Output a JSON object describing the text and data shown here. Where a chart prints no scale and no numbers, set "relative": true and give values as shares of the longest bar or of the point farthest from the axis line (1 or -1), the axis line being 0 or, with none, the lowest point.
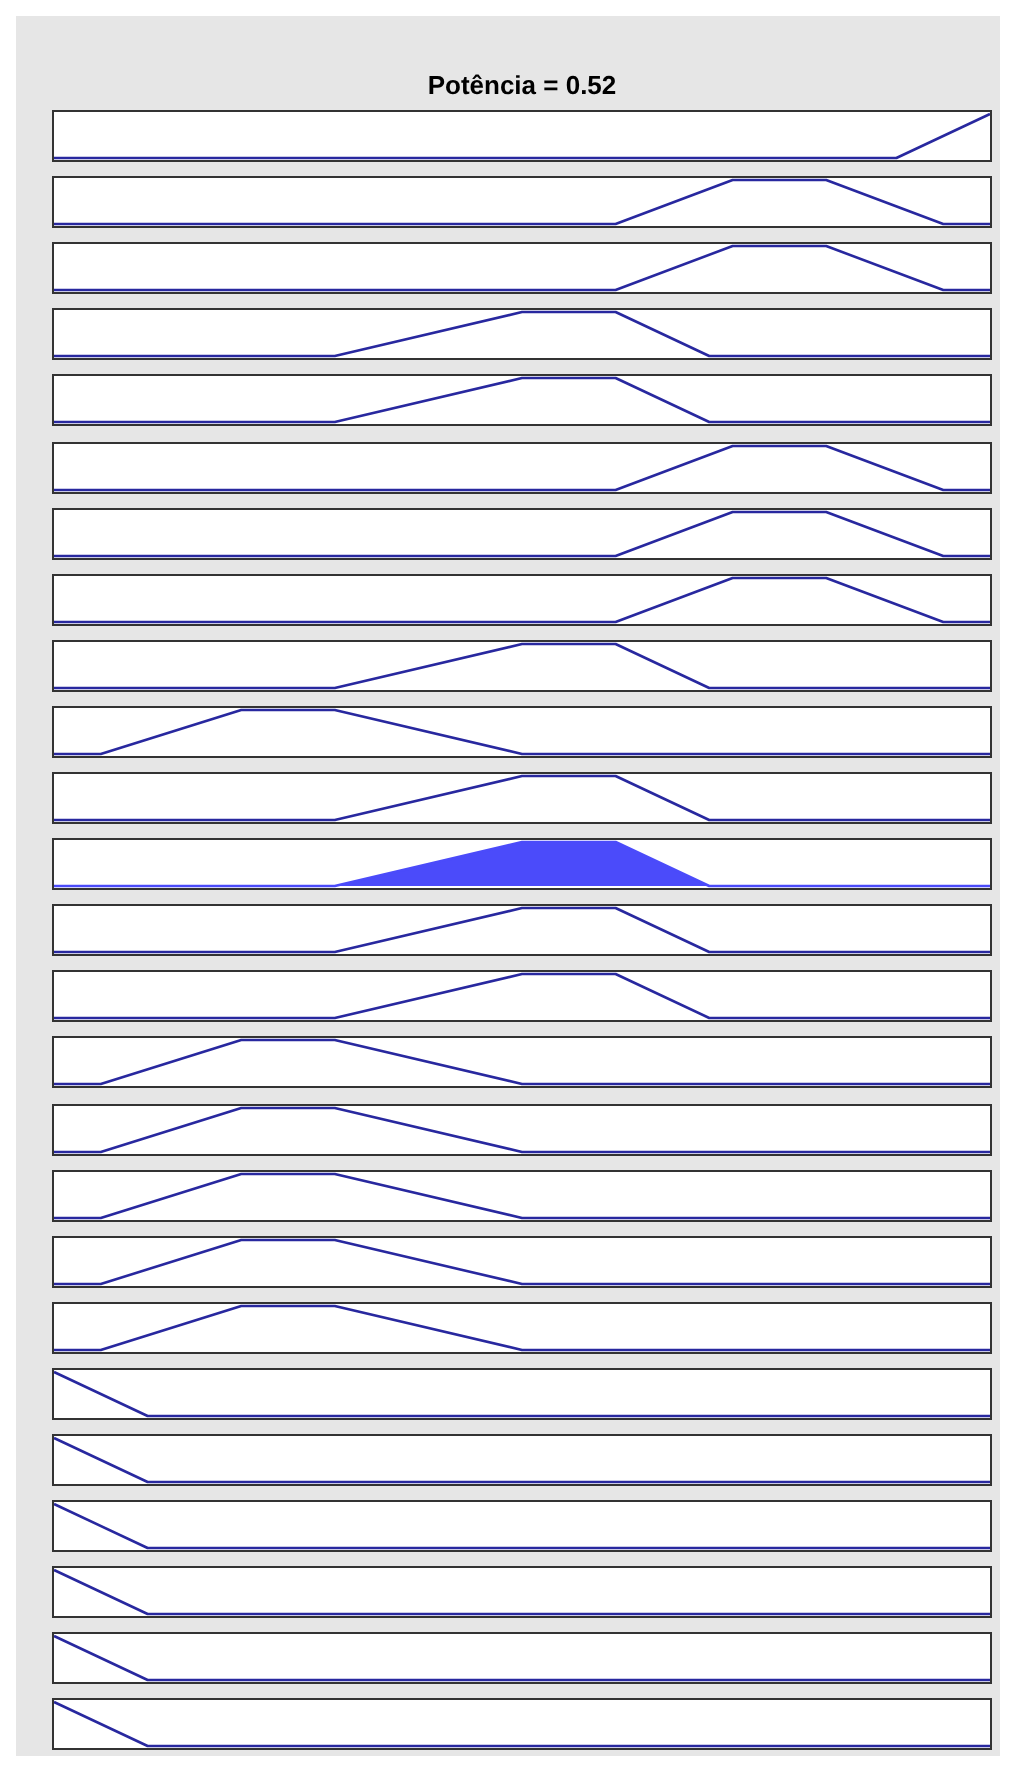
{
  "chart_data": [
    {
      "type": "line",
      "title": "Potência = 0.52",
      "relative": true,
      "categories": [
        null,
        null,
        null,
        null,
        null,
        null,
        null,
        null,
        null,
        null,
        null,
        null,
        null,
        null,
        null,
        null,
        null,
        null,
        null,
        null,
        null,
        null,
        null,
        null,
        null,
        null,
        null,
        null,
        null,
        null,
        null,
        null,
        null,
        null,
        null,
        null,
        null,
        null,
        null,
        null,
        null
      ],
      "series": [
        {
          "color": "#28289f",
          "values": [
            0,
            null,
            null,
            null,
            null,
            null,
            null,
            null,
            null,
            null,
            null,
            null,
            null,
            null,
            null,
            null,
            null,
            null,
            null,
            null,
            null,
            null,
            null,
            null,
            null,
            null,
            null,
            null,
            null,
            null,
            null,
            null,
            null,
            null,
            null,
            null,
            0,
            null,
            null,
            null,
            1
          ]
        }
      ]
    },
    {
      "type": "line",
      "relative": true,
      "categories": [
        null,
        null,
        null,
        null,
        null,
        null,
        null,
        null,
        null,
        null,
        null,
        null,
        null,
        null,
        null,
        null,
        null,
        null,
        null,
        null,
        null,
        null,
        null,
        null,
        null,
        null,
        null,
        null,
        null,
        null,
        null,
        null,
        null,
        null,
        null,
        null,
        null,
        null,
        null,
        null,
        null
      ],
      "series": [
        {
          "color": "#28289f",
          "values": [
            0,
            null,
            null,
            null,
            null,
            null,
            null,
            null,
            null,
            null,
            null,
            null,
            null,
            null,
            null,
            null,
            null,
            null,
            null,
            null,
            null,
            null,
            null,
            null,
            0,
            null,
            null,
            null,
            null,
            1,
            null,
            null,
            null,
            1,
            null,
            null,
            null,
            null,
            0,
            null,
            0
          ]
        }
      ]
    },
    {
      "type": "line",
      "relative": true,
      "categories": [
        null,
        null,
        null,
        null,
        null,
        null,
        null,
        null,
        null,
        null,
        null,
        null,
        null,
        null,
        null,
        null,
        null,
        null,
        null,
        null,
        null,
        null,
        null,
        null,
        null,
        null,
        null,
        null,
        null,
        null,
        null,
        null,
        null,
        null,
        null,
        null,
        null,
        null,
        null,
        null,
        null
      ],
      "series": [
        {
          "color": "#28289f",
          "values": [
            0,
            null,
            null,
            null,
            null,
            null,
            null,
            null,
            null,
            null,
            null,
            null,
            null,
            null,
            null,
            null,
            null,
            null,
            null,
            null,
            null,
            null,
            null,
            null,
            0,
            null,
            null,
            null,
            null,
            1,
            null,
            null,
            null,
            1,
            null,
            null,
            null,
            null,
            0,
            null,
            0
          ]
        }
      ]
    },
    {
      "type": "line",
      "relative": true,
      "categories": [
        null,
        null,
        null,
        null,
        null,
        null,
        null,
        null,
        null,
        null,
        null,
        null,
        null,
        null,
        null,
        null,
        null,
        null,
        null,
        null,
        null,
        null,
        null,
        null,
        null,
        null,
        null,
        null,
        null,
        null,
        null,
        null,
        null,
        null,
        null,
        null,
        null,
        null,
        null,
        null,
        null
      ],
      "series": [
        {
          "color": "#28289f",
          "values": [
            0,
            null,
            null,
            null,
            null,
            null,
            null,
            null,
            null,
            null,
            null,
            null,
            0,
            null,
            null,
            null,
            null,
            null,
            null,
            null,
            1,
            null,
            null,
            null,
            1,
            null,
            null,
            null,
            0,
            null,
            null,
            null,
            null,
            null,
            null,
            null,
            null,
            null,
            null,
            null,
            0
          ]
        }
      ]
    },
    {
      "type": "line",
      "relative": true,
      "categories": [
        null,
        null,
        null,
        null,
        null,
        null,
        null,
        null,
        null,
        null,
        null,
        null,
        null,
        null,
        null,
        null,
        null,
        null,
        null,
        null,
        null,
        null,
        null,
        null,
        null,
        null,
        null,
        null,
        null,
        null,
        null,
        null,
        null,
        null,
        null,
        null,
        null,
        null,
        null,
        null,
        null
      ],
      "series": [
        {
          "color": "#28289f",
          "values": [
            0,
            null,
            null,
            null,
            null,
            null,
            null,
            null,
            null,
            null,
            null,
            null,
            0,
            null,
            null,
            null,
            null,
            null,
            null,
            null,
            1,
            null,
            null,
            null,
            1,
            null,
            null,
            null,
            0,
            null,
            null,
            null,
            null,
            null,
            null,
            null,
            null,
            null,
            null,
            null,
            0
          ]
        }
      ]
    },
    {
      "type": "line",
      "relative": true,
      "categories": [
        null,
        null,
        null,
        null,
        null,
        null,
        null,
        null,
        null,
        null,
        null,
        null,
        null,
        null,
        null,
        null,
        null,
        null,
        null,
        null,
        null,
        null,
        null,
        null,
        null,
        null,
        null,
        null,
        null,
        null,
        null,
        null,
        null,
        null,
        null,
        null,
        null,
        null,
        null,
        null,
        null
      ],
      "series": [
        {
          "color": "#28289f",
          "values": [
            0,
            null,
            null,
            null,
            null,
            null,
            null,
            null,
            null,
            null,
            null,
            null,
            null,
            null,
            null,
            null,
            null,
            null,
            null,
            null,
            null,
            null,
            null,
            null,
            0,
            null,
            null,
            null,
            null,
            1,
            null,
            null,
            null,
            1,
            null,
            null,
            null,
            null,
            0,
            null,
            0
          ]
        }
      ]
    },
    {
      "type": "line",
      "relative": true,
      "categories": [
        null,
        null,
        null,
        null,
        null,
        null,
        null,
        null,
        null,
        null,
        null,
        null,
        null,
        null,
        null,
        null,
        null,
        null,
        null,
        null,
        null,
        null,
        null,
        null,
        null,
        null,
        null,
        null,
        null,
        null,
        null,
        null,
        null,
        null,
        null,
        null,
        null,
        null,
        null,
        null,
        null
      ],
      "series": [
        {
          "color": "#28289f",
          "values": [
            0,
            null,
            null,
            null,
            null,
            null,
            null,
            null,
            null,
            null,
            null,
            null,
            null,
            null,
            null,
            null,
            null,
            null,
            null,
            null,
            null,
            null,
            null,
            null,
            0,
            null,
            null,
            null,
            null,
            1,
            null,
            null,
            null,
            1,
            null,
            null,
            null,
            null,
            0,
            null,
            0
          ]
        }
      ]
    },
    {
      "type": "line",
      "relative": true,
      "categories": [
        null,
        null,
        null,
        null,
        null,
        null,
        null,
        null,
        null,
        null,
        null,
        null,
        null,
        null,
        null,
        null,
        null,
        null,
        null,
        null,
        null,
        null,
        null,
        null,
        null,
        null,
        null,
        null,
        null,
        null,
        null,
        null,
        null,
        null,
        null,
        null,
        null,
        null,
        null,
        null,
        null
      ],
      "series": [
        {
          "color": "#28289f",
          "values": [
            0,
            null,
            null,
            null,
            null,
            null,
            null,
            null,
            null,
            null,
            null,
            null,
            null,
            null,
            null,
            null,
            null,
            null,
            null,
            null,
            null,
            null,
            null,
            null,
            0,
            null,
            null,
            null,
            null,
            1,
            null,
            null,
            null,
            1,
            null,
            null,
            null,
            null,
            0,
            null,
            0
          ]
        }
      ]
    },
    {
      "type": "line",
      "relative": true,
      "categories": [
        null,
        null,
        null,
        null,
        null,
        null,
        null,
        null,
        null,
        null,
        null,
        null,
        null,
        null,
        null,
        null,
        null,
        null,
        null,
        null,
        null,
        null,
        null,
        null,
        null,
        null,
        null,
        null,
        null,
        null,
        null,
        null,
        null,
        null,
        null,
        null,
        null,
        null,
        null,
        null,
        null
      ],
      "series": [
        {
          "color": "#28289f",
          "values": [
            0,
            null,
            null,
            null,
            null,
            null,
            null,
            null,
            null,
            null,
            null,
            null,
            0,
            null,
            null,
            null,
            null,
            null,
            null,
            null,
            1,
            null,
            null,
            null,
            1,
            null,
            null,
            null,
            0,
            null,
            null,
            null,
            null,
            null,
            null,
            null,
            null,
            null,
            null,
            null,
            0
          ]
        }
      ]
    },
    {
      "type": "line",
      "relative": true,
      "categories": [
        null,
        null,
        null,
        null,
        null,
        null,
        null,
        null,
        null,
        null,
        null,
        null,
        null,
        null,
        null,
        null,
        null,
        null,
        null,
        null,
        null,
        null,
        null,
        null,
        null,
        null,
        null,
        null,
        null,
        null,
        null,
        null,
        null,
        null,
        null,
        null,
        null,
        null,
        null,
        null,
        null
      ],
      "series": [
        {
          "color": "#28289f",
          "values": [
            0,
            null,
            0,
            null,
            null,
            null,
            null,
            null,
            1,
            null,
            null,
            null,
            1,
            null,
            null,
            null,
            null,
            null,
            null,
            null,
            0,
            null,
            null,
            null,
            null,
            null,
            null,
            null,
            null,
            null,
            null,
            null,
            null,
            null,
            null,
            null,
            null,
            null,
            null,
            null,
            0
          ]
        }
      ]
    },
    {
      "type": "line",
      "relative": true,
      "categories": [
        null,
        null,
        null,
        null,
        null,
        null,
        null,
        null,
        null,
        null,
        null,
        null,
        null,
        null,
        null,
        null,
        null,
        null,
        null,
        null,
        null,
        null,
        null,
        null,
        null,
        null,
        null,
        null,
        null,
        null,
        null,
        null,
        null,
        null,
        null,
        null,
        null,
        null,
        null,
        null,
        null
      ],
      "series": [
        {
          "color": "#28289f",
          "values": [
            0,
            null,
            null,
            null,
            null,
            null,
            null,
            null,
            null,
            null,
            null,
            null,
            0,
            null,
            null,
            null,
            null,
            null,
            null,
            null,
            1,
            null,
            null,
            null,
            1,
            null,
            null,
            null,
            0,
            null,
            null,
            null,
            null,
            null,
            null,
            null,
            null,
            null,
            null,
            null,
            0
          ]
        }
      ]
    },
    {
      "type": "area",
      "relative": true,
      "categories": [
        null,
        null,
        null,
        null,
        null,
        null,
        null,
        null,
        null,
        null,
        null,
        null,
        null,
        null,
        null,
        null,
        null,
        null,
        null,
        null,
        null,
        null,
        null,
        null,
        null,
        null,
        null,
        null,
        null,
        null,
        null,
        null,
        null,
        null,
        null,
        null,
        null,
        null,
        null,
        null,
        null
      ],
      "series": [
        {
          "color": "#4b4bfa",
          "values": [
            0,
            null,
            null,
            null,
            null,
            null,
            null,
            null,
            null,
            null,
            null,
            null,
            0,
            null,
            null,
            null,
            null,
            null,
            null,
            null,
            1,
            null,
            null,
            null,
            1,
            null,
            null,
            null,
            0,
            null,
            null,
            null,
            null,
            null,
            null,
            null,
            null,
            null,
            null,
            null,
            0
          ]
        }
      ]
    },
    {
      "type": "line",
      "relative": true,
      "categories": [
        null,
        null,
        null,
        null,
        null,
        null,
        null,
        null,
        null,
        null,
        null,
        null,
        null,
        null,
        null,
        null,
        null,
        null,
        null,
        null,
        null,
        null,
        null,
        null,
        null,
        null,
        null,
        null,
        null,
        null,
        null,
        null,
        null,
        null,
        null,
        null,
        null,
        null,
        null,
        null,
        null
      ],
      "series": [
        {
          "color": "#28289f",
          "values": [
            0,
            null,
            null,
            null,
            null,
            null,
            null,
            null,
            null,
            null,
            null,
            null,
            0,
            null,
            null,
            null,
            null,
            null,
            null,
            null,
            1,
            null,
            null,
            null,
            1,
            null,
            null,
            null,
            0,
            null,
            null,
            null,
            null,
            null,
            null,
            null,
            null,
            null,
            null,
            null,
            0
          ]
        }
      ]
    },
    {
      "type": "line",
      "relative": true,
      "categories": [
        null,
        null,
        null,
        null,
        null,
        null,
        null,
        null,
        null,
        null,
        null,
        null,
        null,
        null,
        null,
        null,
        null,
        null,
        null,
        null,
        null,
        null,
        null,
        null,
        null,
        null,
        null,
        null,
        null,
        null,
        null,
        null,
        null,
        null,
        null,
        null,
        null,
        null,
        null,
        null,
        null
      ],
      "series": [
        {
          "color": "#28289f",
          "values": [
            0,
            null,
            null,
            null,
            null,
            null,
            null,
            null,
            null,
            null,
            null,
            null,
            0,
            null,
            null,
            null,
            null,
            null,
            null,
            null,
            1,
            null,
            null,
            null,
            1,
            null,
            null,
            null,
            0,
            null,
            null,
            null,
            null,
            null,
            null,
            null,
            null,
            null,
            null,
            null,
            0
          ]
        }
      ]
    },
    {
      "type": "line",
      "relative": true,
      "categories": [
        null,
        null,
        null,
        null,
        null,
        null,
        null,
        null,
        null,
        null,
        null,
        null,
        null,
        null,
        null,
        null,
        null,
        null,
        null,
        null,
        null,
        null,
        null,
        null,
        null,
        null,
        null,
        null,
        null,
        null,
        null,
        null,
        null,
        null,
        null,
        null,
        null,
        null,
        null,
        null,
        null
      ],
      "series": [
        {
          "color": "#28289f",
          "values": [
            0,
            null,
            0,
            null,
            null,
            null,
            null,
            null,
            1,
            null,
            null,
            null,
            1,
            null,
            null,
            null,
            null,
            null,
            null,
            null,
            0,
            null,
            null,
            null,
            null,
            null,
            null,
            null,
            null,
            null,
            null,
            null,
            null,
            null,
            null,
            null,
            null,
            null,
            null,
            null,
            0
          ]
        }
      ]
    },
    {
      "type": "line",
      "relative": true,
      "categories": [
        null,
        null,
        null,
        null,
        null,
        null,
        null,
        null,
        null,
        null,
        null,
        null,
        null,
        null,
        null,
        null,
        null,
        null,
        null,
        null,
        null,
        null,
        null,
        null,
        null,
        null,
        null,
        null,
        null,
        null,
        null,
        null,
        null,
        null,
        null,
        null,
        null,
        null,
        null,
        null,
        null
      ],
      "series": [
        {
          "color": "#28289f",
          "values": [
            0,
            null,
            0,
            null,
            null,
            null,
            null,
            null,
            1,
            null,
            null,
            null,
            1,
            null,
            null,
            null,
            null,
            null,
            null,
            null,
            0,
            null,
            null,
            null,
            null,
            null,
            null,
            null,
            null,
            null,
            null,
            null,
            null,
            null,
            null,
            null,
            null,
            null,
            null,
            null,
            0
          ]
        }
      ]
    },
    {
      "type": "line",
      "relative": true,
      "categories": [
        null,
        null,
        null,
        null,
        null,
        null,
        null,
        null,
        null,
        null,
        null,
        null,
        null,
        null,
        null,
        null,
        null,
        null,
        null,
        null,
        null,
        null,
        null,
        null,
        null,
        null,
        null,
        null,
        null,
        null,
        null,
        null,
        null,
        null,
        null,
        null,
        null,
        null,
        null,
        null,
        null
      ],
      "series": [
        {
          "color": "#28289f",
          "values": [
            0,
            null,
            0,
            null,
            null,
            null,
            null,
            null,
            1,
            null,
            null,
            null,
            1,
            null,
            null,
            null,
            null,
            null,
            null,
            null,
            0,
            null,
            null,
            null,
            null,
            null,
            null,
            null,
            null,
            null,
            null,
            null,
            null,
            null,
            null,
            null,
            null,
            null,
            null,
            null,
            0
          ]
        }
      ]
    },
    {
      "type": "line",
      "relative": true,
      "categories": [
        null,
        null,
        null,
        null,
        null,
        null,
        null,
        null,
        null,
        null,
        null,
        null,
        null,
        null,
        null,
        null,
        null,
        null,
        null,
        null,
        null,
        null,
        null,
        null,
        null,
        null,
        null,
        null,
        null,
        null,
        null,
        null,
        null,
        null,
        null,
        null,
        null,
        null,
        null,
        null,
        null
      ],
      "series": [
        {
          "color": "#28289f",
          "values": [
            0,
            null,
            0,
            null,
            null,
            null,
            null,
            null,
            1,
            null,
            null,
            null,
            1,
            null,
            null,
            null,
            null,
            null,
            null,
            null,
            0,
            null,
            null,
            null,
            null,
            null,
            null,
            null,
            null,
            null,
            null,
            null,
            null,
            null,
            null,
            null,
            null,
            null,
            null,
            null,
            0
          ]
        }
      ]
    },
    {
      "type": "line",
      "relative": true,
      "categories": [
        null,
        null,
        null,
        null,
        null,
        null,
        null,
        null,
        null,
        null,
        null,
        null,
        null,
        null,
        null,
        null,
        null,
        null,
        null,
        null,
        null,
        null,
        null,
        null,
        null,
        null,
        null,
        null,
        null,
        null,
        null,
        null,
        null,
        null,
        null,
        null,
        null,
        null,
        null,
        null,
        null
      ],
      "series": [
        {
          "color": "#28289f",
          "values": [
            0,
            null,
            0,
            null,
            null,
            null,
            null,
            null,
            1,
            null,
            null,
            null,
            1,
            null,
            null,
            null,
            null,
            null,
            null,
            null,
            0,
            null,
            null,
            null,
            null,
            null,
            null,
            null,
            null,
            null,
            null,
            null,
            null,
            null,
            null,
            null,
            null,
            null,
            null,
            null,
            0
          ]
        }
      ]
    },
    {
      "type": "line",
      "relative": true,
      "categories": [
        null,
        null,
        null,
        null,
        null,
        null,
        null,
        null,
        null,
        null,
        null,
        null,
        null,
        null,
        null,
        null,
        null,
        null,
        null,
        null,
        null,
        null,
        null,
        null,
        null,
        null,
        null,
        null,
        null,
        null,
        null,
        null,
        null,
        null,
        null,
        null,
        null,
        null,
        null,
        null,
        null
      ],
      "series": [
        {
          "color": "#28289f",
          "values": [
            1,
            null,
            null,
            null,
            0,
            null,
            null,
            null,
            null,
            null,
            null,
            null,
            null,
            null,
            null,
            null,
            null,
            null,
            null,
            null,
            null,
            null,
            null,
            null,
            null,
            null,
            null,
            null,
            null,
            null,
            null,
            null,
            null,
            null,
            null,
            null,
            null,
            null,
            null,
            null,
            0
          ]
        }
      ]
    },
    {
      "type": "line",
      "relative": true,
      "categories": [
        null,
        null,
        null,
        null,
        null,
        null,
        null,
        null,
        null,
        null,
        null,
        null,
        null,
        null,
        null,
        null,
        null,
        null,
        null,
        null,
        null,
        null,
        null,
        null,
        null,
        null,
        null,
        null,
        null,
        null,
        null,
        null,
        null,
        null,
        null,
        null,
        null,
        null,
        null,
        null,
        null
      ],
      "series": [
        {
          "color": "#28289f",
          "values": [
            1,
            null,
            null,
            null,
            0,
            null,
            null,
            null,
            null,
            null,
            null,
            null,
            null,
            null,
            null,
            null,
            null,
            null,
            null,
            null,
            null,
            null,
            null,
            null,
            null,
            null,
            null,
            null,
            null,
            null,
            null,
            null,
            null,
            null,
            null,
            null,
            null,
            null,
            null,
            null,
            0
          ]
        }
      ]
    },
    {
      "type": "line",
      "relative": true,
      "categories": [
        null,
        null,
        null,
        null,
        null,
        null,
        null,
        null,
        null,
        null,
        null,
        null,
        null,
        null,
        null,
        null,
        null,
        null,
        null,
        null,
        null,
        null,
        null,
        null,
        null,
        null,
        null,
        null,
        null,
        null,
        null,
        null,
        null,
        null,
        null,
        null,
        null,
        null,
        null,
        null,
        null
      ],
      "series": [
        {
          "color": "#28289f",
          "values": [
            1,
            null,
            null,
            null,
            0,
            null,
            null,
            null,
            null,
            null,
            null,
            null,
            null,
            null,
            null,
            null,
            null,
            null,
            null,
            null,
            null,
            null,
            null,
            null,
            null,
            null,
            null,
            null,
            null,
            null,
            null,
            null,
            null,
            null,
            null,
            null,
            null,
            null,
            null,
            null,
            0
          ]
        }
      ]
    },
    {
      "type": "line",
      "relative": true,
      "categories": [
        null,
        null,
        null,
        null,
        null,
        null,
        null,
        null,
        null,
        null,
        null,
        null,
        null,
        null,
        null,
        null,
        null,
        null,
        null,
        null,
        null,
        null,
        null,
        null,
        null,
        null,
        null,
        null,
        null,
        null,
        null,
        null,
        null,
        null,
        null,
        null,
        null,
        null,
        null,
        null,
        null
      ],
      "series": [
        {
          "color": "#28289f",
          "values": [
            1,
            null,
            null,
            null,
            0,
            null,
            null,
            null,
            null,
            null,
            null,
            null,
            null,
            null,
            null,
            null,
            null,
            null,
            null,
            null,
            null,
            null,
            null,
            null,
            null,
            null,
            null,
            null,
            null,
            null,
            null,
            null,
            null,
            null,
            null,
            null,
            null,
            null,
            null,
            null,
            0
          ]
        }
      ]
    },
    {
      "type": "line",
      "relative": true,
      "categories": [
        null,
        null,
        null,
        null,
        null,
        null,
        null,
        null,
        null,
        null,
        null,
        null,
        null,
        null,
        null,
        null,
        null,
        null,
        null,
        null,
        null,
        null,
        null,
        null,
        null,
        null,
        null,
        null,
        null,
        null,
        null,
        null,
        null,
        null,
        null,
        null,
        null,
        null,
        null,
        null,
        null
      ],
      "series": [
        {
          "color": "#28289f",
          "values": [
            1,
            null,
            null,
            null,
            0,
            null,
            null,
            null,
            null,
            null,
            null,
            null,
            null,
            null,
            null,
            null,
            null,
            null,
            null,
            null,
            null,
            null,
            null,
            null,
            null,
            null,
            null,
            null,
            null,
            null,
            null,
            null,
            null,
            null,
            null,
            null,
            null,
            null,
            null,
            null,
            0
          ]
        }
      ]
    },
    {
      "type": "line",
      "relative": true,
      "categories": [
        null,
        null,
        null,
        null,
        null,
        null,
        null,
        null,
        null,
        null,
        null,
        null,
        null,
        null,
        null,
        null,
        null,
        null,
        null,
        null,
        null,
        null,
        null,
        null,
        null,
        null,
        null,
        null,
        null,
        null,
        null,
        null,
        null,
        null,
        null,
        null,
        null,
        null,
        null,
        null,
        null
      ],
      "series": [
        {
          "color": "#28289f",
          "values": [
            1,
            null,
            null,
            null,
            0,
            null,
            null,
            null,
            null,
            null,
            null,
            null,
            null,
            null,
            null,
            null,
            null,
            null,
            null,
            null,
            null,
            null,
            null,
            null,
            null,
            null,
            null,
            null,
            null,
            null,
            null,
            null,
            null,
            null,
            null,
            null,
            null,
            null,
            null,
            null,
            0
          ]
        }
      ]
    }
  ]
}
